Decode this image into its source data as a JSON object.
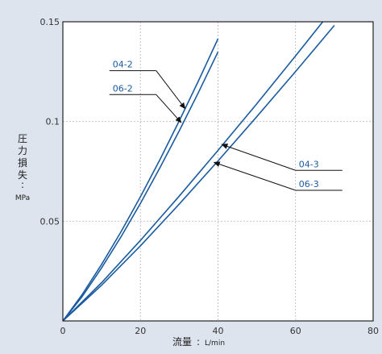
{
  "chart_data": {
    "type": "line",
    "xlabel": "流量",
    "xunit": "L/min",
    "ylabel": "圧力損失",
    "yunit": "MPa",
    "xlim": [
      0,
      80
    ],
    "ylim": [
      0,
      0.15
    ],
    "x_ticks": [
      "0",
      "20",
      "40",
      "60",
      "80"
    ],
    "y_ticks": [
      "0.05",
      "0.1",
      "0.15"
    ],
    "grid": true,
    "series": [
      {
        "name": "04-2",
        "x": [
          0,
          5,
          10,
          15,
          20,
          25,
          30,
          35,
          40
        ],
        "y": [
          0,
          0.0133,
          0.0284,
          0.0447,
          0.0623,
          0.0808,
          0.1003,
          0.1205,
          0.1415
        ]
      },
      {
        "name": "06-2",
        "x": [
          0,
          5,
          10,
          15,
          20,
          25,
          30,
          35,
          40
        ],
        "y": [
          0,
          0.0123,
          0.0266,
          0.0422,
          0.059,
          0.0767,
          0.0953,
          0.1147,
          0.1349
        ]
      },
      {
        "name": "04-3",
        "x": [
          0,
          10,
          20,
          30,
          40,
          50,
          60,
          70
        ],
        "y": [
          0,
          0.0192,
          0.0404,
          0.0626,
          0.0855,
          0.1089,
          0.1329,
          0.1573
        ]
      },
      {
        "name": "06-3",
        "x": [
          0,
          10,
          20,
          30,
          40,
          50,
          60,
          70
        ],
        "y": [
          0,
          0.0179,
          0.0377,
          0.0586,
          0.0802,
          0.1024,
          0.1251,
          0.1482
        ]
      }
    ],
    "annotations": [
      {
        "series": "04-2",
        "text": "04-2",
        "target_x": 31.5,
        "target_y": 0.1065,
        "label_x": 12,
        "label_y": 0.1255
      },
      {
        "series": "06-2",
        "text": "06-2",
        "target_x": 30.5,
        "target_y": 0.0995,
        "label_x": 12,
        "label_y": 0.1135
      },
      {
        "series": "04-3",
        "text": "04-3",
        "target_x": 41,
        "target_y": 0.0885,
        "label_x": 60,
        "label_y": 0.0755
      },
      {
        "series": "06-3",
        "text": "06-3",
        "target_x": 39,
        "target_y": 0.0795,
        "label_x": 60,
        "label_y": 0.0655
      }
    ],
    "colors": {
      "background": "#dde4ee",
      "plot_area": "#ffffff",
      "frame": "#222222",
      "grid": "#b8b8b8",
      "series_line": "#1a5a9e",
      "label_text": "#1a5a9e",
      "leader": "#111111"
    }
  }
}
